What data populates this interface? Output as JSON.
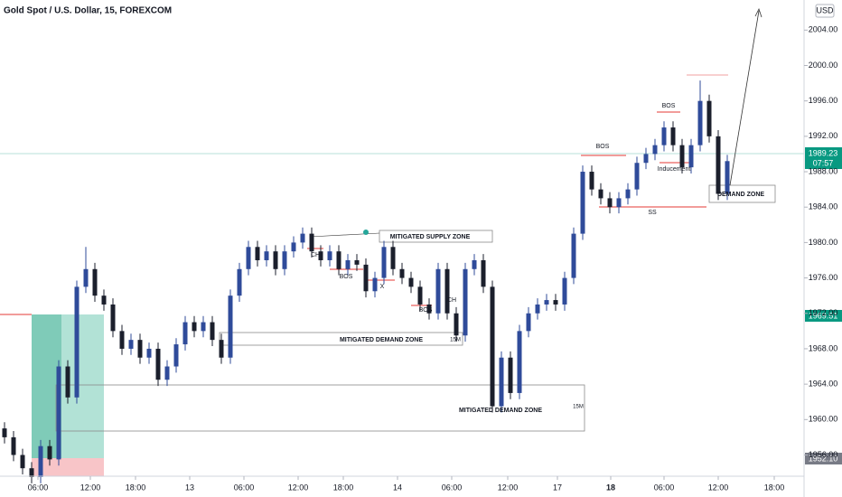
{
  "chart_data": {
    "type": "candlestick",
    "title": "Gold Spot / U.S. Dollar, 15, FOREXCOM",
    "currency": "USD",
    "price_tags": [
      "1989.23",
      "07:57",
      "1969.51",
      "1952.10"
    ],
    "annotations": [
      "MITIGATED DEMAND ZONE",
      "15M",
      "MITIGATED DEMAND ZONE",
      "15M",
      "MITIGATED SUPPLY ZONE",
      "DEMAND ZONE",
      "CH",
      "BOS",
      "X",
      "BOS",
      "CH",
      "BOS",
      "BOS",
      "Inducement",
      "SS"
    ],
    "up_color": "#2f4b9a",
    "down_color": "#1b1f2c",
    "x": [
      0,
      1,
      2,
      3,
      4,
      5,
      6,
      7,
      8,
      9,
      10,
      11,
      12,
      13,
      14,
      15,
      16,
      17,
      18,
      19,
      20,
      21,
      22,
      23,
      24,
      25,
      26,
      27,
      28,
      29,
      30,
      31,
      32,
      33,
      34,
      35,
      36,
      37,
      38,
      39,
      40,
      41,
      42,
      43,
      44,
      45,
      46,
      47,
      48,
      49,
      50,
      51,
      52,
      53,
      54,
      55,
      56,
      57,
      58,
      59,
      60,
      61,
      62,
      63,
      64,
      65,
      66,
      67,
      68,
      69,
      70,
      71,
      72,
      73,
      74,
      75,
      76,
      77,
      78,
      79,
      80
    ],
    "open": [
      1959,
      1958,
      1956,
      1954.5,
      1953.5,
      1957,
      1955.5,
      1966,
      1962.5,
      1975,
      1977,
      1974,
      1973,
      1970,
      1968,
      1969,
      1967,
      1968,
      1964.5,
      1966,
      1968.5,
      1971,
      1970,
      1971,
      1969,
      1967,
      1974,
      1977,
      1979.5,
      1978,
      1979,
      1977,
      1979,
      1980,
      1981,
      1979,
      1978,
      1979,
      1977,
      1978,
      1977.5,
      1974.5,
      1976,
      1979.5,
      1977,
      1976,
      1975,
      1973,
      1972,
      1977,
      1972,
      1969.5,
      1977,
      1978,
      1975,
      1961.5,
      1967,
      1963,
      1970,
      1972,
      1973,
      1973.5,
      1973,
      1976,
      1981,
      1988,
      1986,
      1985,
      1984,
      1985,
      1986,
      1989,
      1990,
      1991,
      1993,
      1991,
      1988.5,
      1991,
      1996,
      1992,
      1985.5
    ],
    "high": [
      1959.7,
      1958.7,
      1956.7,
      1955.2,
      1957.7,
      1957.7,
      1966.7,
      1966.7,
      1975.7,
      1979.5,
      1977.7,
      1974.7,
      1973.7,
      1970.7,
      1969.7,
      1969.7,
      1968.7,
      1968.7,
      1966.7,
      1969.2,
      1971.7,
      1971.7,
      1971.7,
      1971.7,
      1969.7,
      1974.7,
      1977.7,
      1980.2,
      1980.2,
      1979.7,
      1979.7,
      1979.7,
      1980.7,
      1981.7,
      1981.7,
      1979.7,
      1979.7,
      1979.7,
      1978.7,
      1978.7,
      1978.2,
      1976.7,
      1980.2,
      1980.2,
      1977.7,
      1976.7,
      1975.7,
      1973.7,
      1977.7,
      1977.7,
      1972.7,
      1977.7,
      1978.7,
      1978.7,
      1975.7,
      1967.7,
      1967.7,
      1970.7,
      1972.7,
      1973.7,
      1974.2,
      1974.2,
      1976.7,
      1981.7,
      1988.7,
      1988.7,
      1986.7,
      1985.7,
      1985.7,
      1986.7,
      1989.7,
      1990.7,
      1991.7,
      1993.7,
      1993.7,
      1991.7,
      1991.7,
      1998.3,
      1996.7,
      1992.7,
      1989.9
    ],
    "low": [
      1957.3,
      1955.3,
      1953.8,
      1952.8,
      1952.8,
      1954.8,
      1954.8,
      1961.8,
      1961.8,
      1974.3,
      1973.3,
      1972.3,
      1969.3,
      1967.3,
      1967.3,
      1966.3,
      1966.3,
      1963.8,
      1963.8,
      1965.3,
      1967.8,
      1969.3,
      1969.3,
      1968.3,
      1966.3,
      1966.3,
      1973.3,
      1976.3,
      1977.3,
      1977.3,
      1976.3,
      1976.3,
      1978.3,
      1979.3,
      1978.3,
      1977.3,
      1977.3,
      1976.3,
      1976.3,
      1976.8,
      1973.8,
      1973.8,
      1975.3,
      1976.3,
      1975.3,
      1974.3,
      1972.3,
      1971.3,
      1971.3,
      1971.3,
      1968.8,
      1968.8,
      1976.3,
      1974.3,
      1960.8,
      1960.8,
      1962.3,
      1962.3,
      1969.3,
      1971.3,
      1972.3,
      1972.3,
      1972.3,
      1975.3,
      1980.3,
      1985.3,
      1984.3,
      1983.3,
      1983.3,
      1984.3,
      1985.3,
      1988.3,
      1989.3,
      1990.3,
      1990.3,
      1987.8,
      1987.8,
      1990.3,
      1991.3,
      1984.8,
      1984.8
    ],
    "close": [
      1958,
      1956,
      1954.5,
      1953.5,
      1957,
      1955.5,
      1966,
      1962.5,
      1975,
      1977,
      1974,
      1973,
      1970,
      1968,
      1969,
      1967,
      1968,
      1964.5,
      1966,
      1968.5,
      1971,
      1970,
      1971,
      1969,
      1967,
      1974,
      1977,
      1979.5,
      1978,
      1979,
      1977,
      1979,
      1980,
      1981,
      1979,
      1978,
      1979,
      1977,
      1978,
      1977.5,
      1974.5,
      1976,
      1979.5,
      1977,
      1976,
      1975,
      1973,
      1972,
      1977,
      1972,
      1969.5,
      1977,
      1978,
      1975,
      1961.5,
      1967,
      1963,
      1970,
      1972,
      1973,
      1973.5,
      1973,
      1976,
      1981,
      1988,
      1986,
      1985,
      1984,
      1985,
      1986,
      1989,
      1990,
      1991,
      1993,
      1991,
      1988.5,
      1991,
      1996,
      1992,
      1985.5,
      1989.2
    ],
    "xlim": [
      -0.5,
      88.5
    ],
    "xticks": [
      {
        "value": 3.7,
        "label": "06:00"
      },
      {
        "value": 9.5,
        "label": "12:00"
      },
      {
        "value": 14.5,
        "label": "18:00"
      },
      {
        "value": 20.5,
        "label": "13"
      },
      {
        "value": 26.5,
        "label": "06:00"
      },
      {
        "value": 32.5,
        "label": "12:00"
      },
      {
        "value": 37.5,
        "label": "18:00"
      },
      {
        "value": 43.5,
        "label": "14"
      },
      {
        "value": 49.5,
        "label": "06:00"
      },
      {
        "value": 55.7,
        "label": "12:00"
      },
      {
        "value": 61.2,
        "label": "17"
      },
      {
        "value": 67.1,
        "label": "18"
      },
      {
        "value": 73,
        "label": "06:00"
      },
      {
        "value": 79,
        "label": "12:00"
      },
      {
        "value": 85.2,
        "label": "18:00"
      }
    ],
    "ylim": [
      1953.6,
      2007.4
    ],
    "yticks": [
      {
        "value": 1956,
        "label": "1956.00"
      },
      {
        "value": 1960,
        "label": "1960.00"
      },
      {
        "value": 1964,
        "label": "1964.00"
      },
      {
        "value": 1968,
        "label": "1968.00"
      },
      {
        "value": 1972,
        "label": "1972.00"
      },
      {
        "value": 1976,
        "label": "1976.00"
      },
      {
        "value": 1980,
        "label": "1980.00"
      },
      {
        "value": 1984,
        "label": "1984.00"
      },
      {
        "value": 1988,
        "label": "1988.00"
      },
      {
        "value": 1992,
        "label": "1992.00"
      },
      {
        "value": 1996,
        "label": "1996.00"
      },
      {
        "value": 2000,
        "label": "2000.00"
      },
      {
        "value": 2004,
        "label": "2004.00"
      }
    ]
  }
}
